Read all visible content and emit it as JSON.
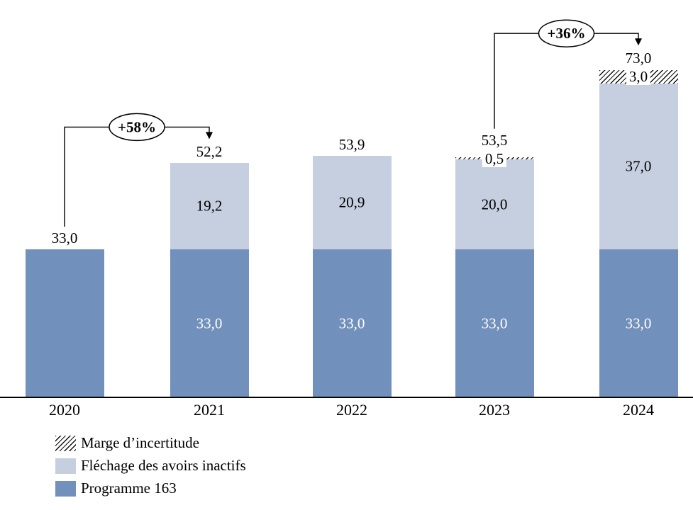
{
  "chart_data": {
    "type": "bar",
    "stacked": true,
    "title": "",
    "xlabel": "",
    "ylabel": "",
    "gridlines": false,
    "y_axis_visible": false,
    "categories": [
      "2020",
      "2021",
      "2022",
      "2023",
      "2024"
    ],
    "series": [
      {
        "name": "Programme 163",
        "color": "#7190BC",
        "values": [
          33.0,
          33.0,
          33.0,
          33.0,
          33.0
        ],
        "value_labels": [
          "",
          "33,0",
          "33,0",
          "33,0",
          "33,0"
        ],
        "label_color": "#FFFFFF"
      },
      {
        "name": "Fléchage des avoirs inactifs",
        "color": "#C6CFE0",
        "values": [
          0,
          19.2,
          20.9,
          20.0,
          37.0
        ],
        "value_labels": [
          "",
          "19,2",
          "20,9",
          "20,0",
          "37,0"
        ],
        "label_color": "#000000"
      },
      {
        "name": "Marge d’incertitude",
        "pattern": "diagonal-hatch",
        "pattern_colors": [
          "#000000",
          "#FFFFFF"
        ],
        "values": [
          0,
          0,
          0,
          0.5,
          3.0
        ],
        "value_labels": [
          "",
          "",
          "",
          "0,5",
          "3,0"
        ],
        "label_color": "#000000"
      }
    ],
    "totals": [
      33.0,
      52.2,
      53.9,
      53.5,
      73.0
    ],
    "total_labels": [
      "33,0",
      "52,2",
      "53,9",
      "53,5",
      "73,0"
    ],
    "annotations": [
      {
        "label": "+58%",
        "from_category": "2020",
        "to_category": "2021"
      },
      {
        "label": "+36%",
        "from_category": "2023",
        "to_category": "2024"
      }
    ],
    "legend": [
      {
        "label": "Marge d’incertitude",
        "swatch": "hatch"
      },
      {
        "label": "Fléchage des avoirs inactifs",
        "swatch": "flechage"
      },
      {
        "label": "Programme 163",
        "swatch": "programme"
      }
    ],
    "axis_color": "#000000",
    "annotation_line_color": "#000000"
  }
}
